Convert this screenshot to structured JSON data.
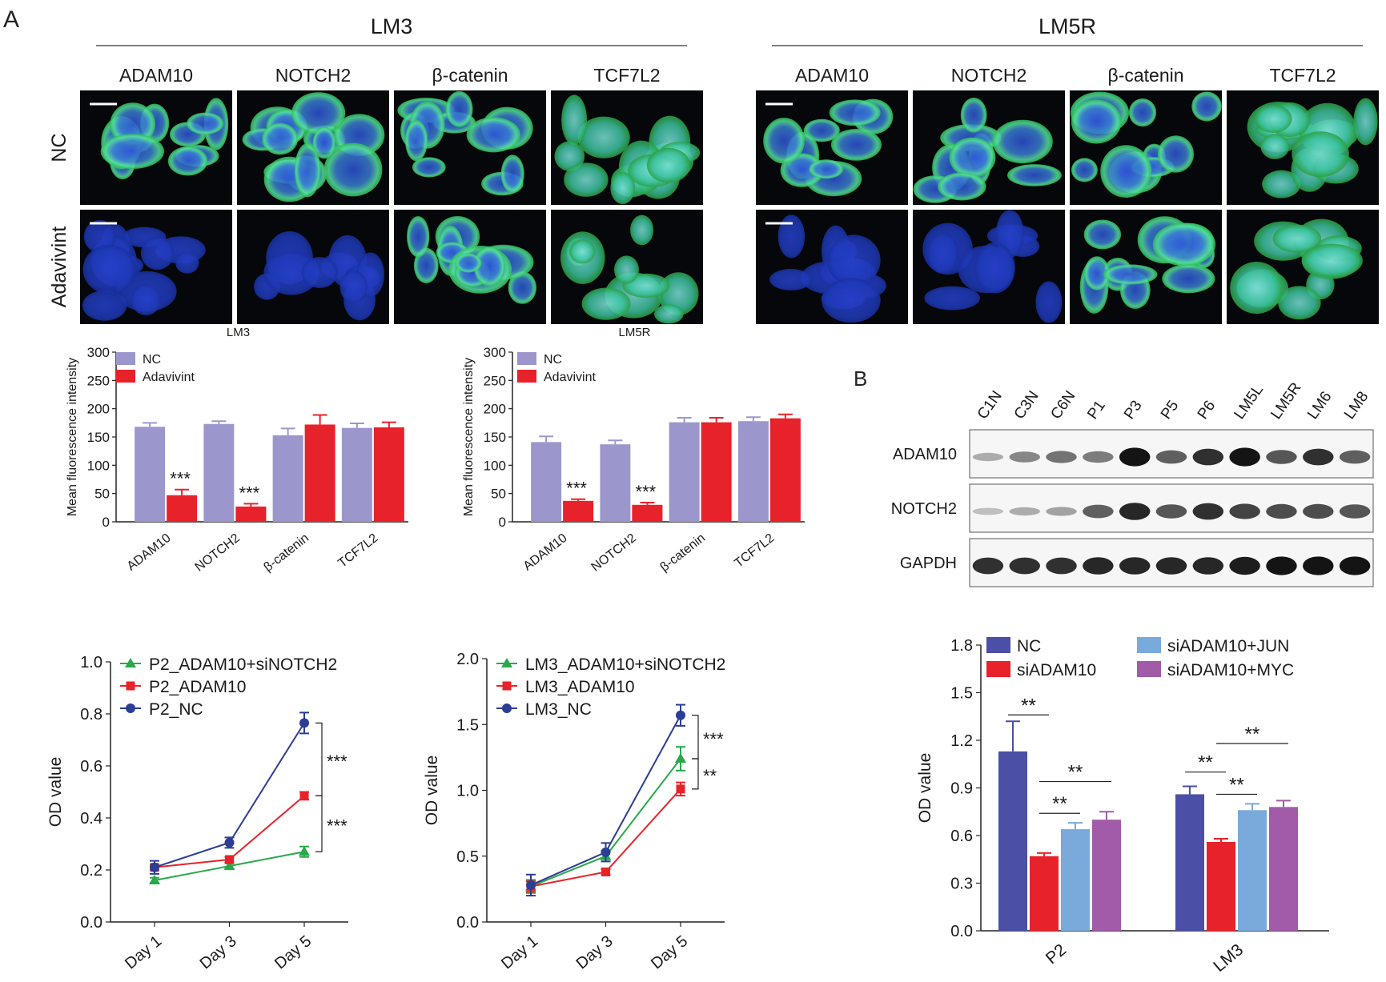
{
  "panels": {
    "a_label": "A",
    "b_label": "B"
  },
  "micro": {
    "groups": [
      {
        "title": "LM3",
        "markers": [
          "ADAM10",
          "NOTCH2",
          "β-catenin",
          "TCF7L2"
        ],
        "rows": [
          "NC",
          "Adavivint"
        ]
      },
      {
        "title": "LM5R",
        "markers": [
          "ADAM10",
          "NOTCH2",
          "β-catenin",
          "TCF7L2"
        ],
        "rows": [
          "NC",
          "Adavivint"
        ]
      }
    ]
  },
  "western": {
    "lanes": [
      "C1N",
      "C3N",
      "C6N",
      "P1",
      "P3",
      "P5",
      "P6",
      "LM5L",
      "LM5R",
      "LM6",
      "LM8"
    ],
    "blots": [
      {
        "label": "ADAM10",
        "intensity": [
          0.15,
          0.35,
          0.45,
          0.4,
          0.95,
          0.55,
          0.8,
          0.95,
          0.6,
          0.8,
          0.55
        ]
      },
      {
        "label": "NOTCH2",
        "intensity": [
          0.05,
          0.15,
          0.2,
          0.55,
          0.85,
          0.6,
          0.8,
          0.7,
          0.65,
          0.65,
          0.6
        ]
      },
      {
        "label": "GAPDH",
        "intensity": [
          0.8,
          0.8,
          0.8,
          0.85,
          0.85,
          0.85,
          0.85,
          0.9,
          0.95,
          0.95,
          0.95
        ]
      }
    ]
  },
  "chart_data": [
    {
      "type": "bar",
      "title": "LM3",
      "xlabel": "",
      "ylabel": "Mean fluorescence intensity",
      "ylim": [
        0,
        300
      ],
      "yticks": [
        0,
        50,
        100,
        150,
        200,
        250,
        300
      ],
      "categories": [
        "ADAM10",
        "NOTCH2",
        "β-catenin",
        "TCF7L2"
      ],
      "series": [
        {
          "name": "NC",
          "color": "#9b97cc",
          "values": [
            168,
            173,
            153,
            166
          ],
          "errors": [
            7,
            5,
            12,
            8
          ]
        },
        {
          "name": "Adavivint",
          "color": "#e8222a",
          "values": [
            47,
            27,
            172,
            167
          ],
          "errors": [
            10,
            5,
            17,
            9
          ]
        }
      ],
      "annotations": [
        {
          "category": 0,
          "text": "***"
        },
        {
          "category": 1,
          "text": "***"
        }
      ]
    },
    {
      "type": "bar",
      "title": "LM5R",
      "xlabel": "",
      "ylabel": "Mean fluorescence intensity",
      "ylim": [
        0,
        300
      ],
      "yticks": [
        0,
        50,
        100,
        150,
        200,
        250,
        300
      ],
      "categories": [
        "ADAM10",
        "NOTCH2",
        "β-catenin",
        "TCF7L2"
      ],
      "series": [
        {
          "name": "NC",
          "color": "#9b97cc",
          "values": [
            141,
            137,
            176,
            178
          ],
          "errors": [
            10,
            7,
            8,
            7
          ]
        },
        {
          "name": "Adavivint",
          "color": "#e8222a",
          "values": [
            37,
            30,
            176,
            183
          ],
          "errors": [
            3,
            4,
            8,
            7
          ]
        }
      ],
      "annotations": [
        {
          "category": 0,
          "text": "***"
        },
        {
          "category": 1,
          "text": "***"
        }
      ]
    },
    {
      "type": "line",
      "title": "",
      "xlabel": "",
      "ylabel": "OD value",
      "ylim": [
        0,
        1.0
      ],
      "yticks": [
        "0.0",
        "0.2",
        "0.4",
        "0.6",
        "0.8",
        "1.0"
      ],
      "x": [
        "Day 1",
        "Day 3",
        "Day 5"
      ],
      "series": [
        {
          "name": "P2_ADAM10+siNOTCH2",
          "color": "#2aa84a",
          "marker": "triangle",
          "values": [
            0.16,
            0.215,
            0.27
          ],
          "errors": [
            0.01,
            0.01,
            0.02
          ]
        },
        {
          "name": "P2_ADAM10",
          "color": "#e8222a",
          "marker": "square",
          "values": [
            0.21,
            0.24,
            0.485
          ],
          "errors": [
            0.01,
            0.01,
            0.015
          ]
        },
        {
          "name": "P2_NC",
          "color": "#2b3d94",
          "marker": "circle",
          "values": [
            0.21,
            0.305,
            0.765
          ],
          "errors": [
            0.025,
            0.02,
            0.04
          ]
        }
      ],
      "brackets": [
        {
          "from": 0.765,
          "to": 0.485,
          "text": "***"
        },
        {
          "from": 0.485,
          "to": 0.27,
          "text": "***"
        }
      ]
    },
    {
      "type": "line",
      "title": "",
      "xlabel": "",
      "ylabel": "OD value",
      "ylim": [
        0,
        2.0
      ],
      "yticks": [
        "0.0",
        "0.5",
        "1.0",
        "1.5",
        "2.0"
      ],
      "x": [
        "Day 1",
        "Day 3",
        "Day 5"
      ],
      "series": [
        {
          "name": "LM3_ADAM10+siNOTCH2",
          "color": "#2aa84a",
          "marker": "triangle",
          "values": [
            0.27,
            0.5,
            1.24
          ],
          "errors": [
            0.05,
            0.04,
            0.09
          ]
        },
        {
          "name": "LM3_ADAM10",
          "color": "#e8222a",
          "marker": "square",
          "values": [
            0.27,
            0.38,
            1.01
          ],
          "errors": [
            0.04,
            0.02,
            0.05
          ]
        },
        {
          "name": "LM3_NC",
          "color": "#2b3d94",
          "marker": "circle",
          "values": [
            0.28,
            0.53,
            1.57
          ],
          "errors": [
            0.08,
            0.07,
            0.08
          ]
        }
      ],
      "brackets": [
        {
          "from": 1.57,
          "to": 1.24,
          "text": "***"
        },
        {
          "from": 1.24,
          "to": 1.01,
          "text": "**"
        }
      ]
    },
    {
      "type": "bar",
      "title": "",
      "xlabel": "",
      "ylabel": "OD value",
      "ylim": [
        0,
        1.8
      ],
      "yticks": [
        "0.0",
        "0.3",
        "0.6",
        "0.9",
        "1.2",
        "1.5",
        "1.8"
      ],
      "categories": [
        "P2",
        "LM3"
      ],
      "series": [
        {
          "name": "NC",
          "color": "#4b4fa6",
          "values": [
            1.13,
            0.86
          ],
          "errors": [
            0.19,
            0.05
          ]
        },
        {
          "name": "siADAM10",
          "color": "#e8222a",
          "values": [
            0.47,
            0.56
          ],
          "errors": [
            0.02,
            0.02
          ]
        },
        {
          "name": "siADAM10+JUN",
          "color": "#7aa9dc",
          "values": [
            0.64,
            0.76
          ],
          "errors": [
            0.04,
            0.04
          ]
        },
        {
          "name": "siADAM10+MYC",
          "color": "#a25ba8",
          "values": [
            0.7,
            0.78
          ],
          "errors": [
            0.05,
            0.04
          ]
        }
      ],
      "annotations": [
        {
          "category": 0,
          "from": 0,
          "to": 1,
          "y": 1.36,
          "text": "**"
        },
        {
          "category": 0,
          "from": 1,
          "to": 2,
          "y": 0.74,
          "text": "**"
        },
        {
          "category": 0,
          "from": 1,
          "to": 3,
          "y": 0.94,
          "text": "**"
        },
        {
          "category": 1,
          "from": 0,
          "to": 1,
          "y": 1.0,
          "text": "**"
        },
        {
          "category": 1,
          "from": 1,
          "to": 2,
          "y": 0.86,
          "text": "**"
        },
        {
          "category": 1,
          "from": 1,
          "to": 3,
          "y": 1.18,
          "text": "**"
        }
      ]
    }
  ]
}
